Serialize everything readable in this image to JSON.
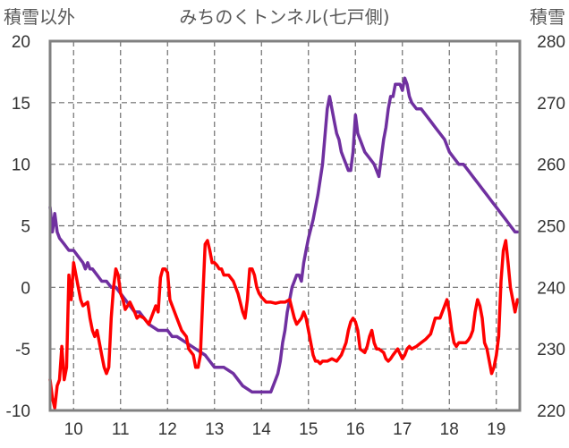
{
  "chart_data": {
    "type": "line",
    "title": "みちのくトンネル(七戸側)",
    "left_axis_label": "積雪以外",
    "right_axis_label": "積雪",
    "x_ticks": [
      "10",
      "11",
      "12",
      "13",
      "14",
      "15",
      "16",
      "17",
      "18",
      "19"
    ],
    "x_range": [
      9.5,
      19.5
    ],
    "left_ylim": [
      -10,
      20
    ],
    "left_ticks": [
      "20",
      "15",
      "10",
      "5",
      "0",
      "-5",
      "-10"
    ],
    "right_ylim": [
      220,
      280
    ],
    "right_ticks": [
      "280",
      "270",
      "260",
      "250",
      "240",
      "230",
      "220"
    ],
    "grid": true,
    "colors": {
      "red_series": "#ff0000",
      "purple_series": "#7030a0",
      "frame": "#808080",
      "grid": "#6e6e6e"
    },
    "series": [
      {
        "axis": "left",
        "color": "#ff0000",
        "x": [
          9.5,
          9.55,
          9.6,
          9.65,
          9.7,
          9.75,
          9.8,
          9.85,
          9.9,
          9.95,
          10.0,
          10.05,
          10.1,
          10.15,
          10.2,
          10.3,
          10.35,
          10.4,
          10.45,
          10.5,
          10.55,
          10.6,
          10.65,
          10.7,
          10.75,
          10.8,
          10.85,
          10.9,
          10.95,
          11.0,
          11.05,
          11.1,
          11.15,
          11.2,
          11.3,
          11.35,
          11.4,
          11.5,
          11.6,
          11.7,
          11.75,
          11.8,
          11.85,
          11.9,
          11.95,
          12.0,
          12.05,
          12.1,
          12.15,
          12.2,
          12.3,
          12.4,
          12.45,
          12.55,
          12.6,
          12.65,
          12.7,
          12.75,
          12.8,
          12.85,
          12.9,
          12.95,
          13.0,
          13.05,
          13.1,
          13.15,
          13.2,
          13.3,
          13.4,
          13.5,
          13.6,
          13.65,
          13.7,
          13.75,
          13.8,
          13.85,
          13.9,
          13.95,
          14.0,
          14.05,
          14.1,
          14.2,
          14.3,
          14.4,
          14.5,
          14.6,
          14.7,
          14.75,
          14.85,
          14.9,
          14.95,
          15.0,
          15.05,
          15.1,
          15.15,
          15.2,
          15.25,
          15.3,
          15.4,
          15.5,
          15.6,
          15.7,
          15.8,
          15.85,
          15.9,
          15.95,
          16.0,
          16.05,
          16.1,
          16.2,
          16.25,
          16.3,
          16.35,
          16.4,
          16.45,
          16.5,
          16.6,
          16.65,
          16.7,
          16.75,
          16.8,
          16.9,
          17.0,
          17.05,
          17.1,
          17.15,
          17.2,
          17.3,
          17.4,
          17.5,
          17.6,
          17.7,
          17.8,
          17.85,
          17.9,
          17.95,
          18.0,
          18.05,
          18.1,
          18.15,
          18.2,
          18.3,
          18.35,
          18.4,
          18.45,
          18.5,
          18.55,
          18.6,
          18.65,
          18.7,
          18.75,
          18.8,
          18.85,
          18.9,
          18.95,
          19.0,
          19.05,
          19.1,
          19.15,
          19.2,
          19.25,
          19.3,
          19.35,
          19.4,
          19.45
        ],
        "y": [
          -7.5,
          -9.0,
          -9.8,
          -8.0,
          -7.5,
          -4.8,
          -7.5,
          -6.5,
          1.0,
          -1.0,
          2.0,
          1.0,
          0.0,
          -1.0,
          -1.5,
          -1.2,
          -2.5,
          -3.5,
          -4.0,
          -3.5,
          -4.5,
          -5.5,
          -6.5,
          -7.0,
          -6.5,
          -2.5,
          0.0,
          1.5,
          1.0,
          -0.5,
          -1.0,
          -1.8,
          -1.5,
          -1.2,
          -2.0,
          -2.5,
          -2.3,
          -2.5,
          -3.0,
          -2.0,
          -1.5,
          -2.0,
          0.8,
          1.5,
          1.5,
          1.2,
          -1.0,
          -1.5,
          -2.0,
          -2.5,
          -3.5,
          -4.0,
          -5.0,
          -5.5,
          -6.5,
          -6.5,
          -5.5,
          -1.0,
          3.5,
          3.8,
          3.0,
          2.0,
          2.0,
          1.8,
          1.5,
          1.5,
          1.0,
          1.0,
          0.5,
          -0.5,
          -2.0,
          -2.5,
          -1.0,
          1.5,
          1.5,
          1.0,
          0.0,
          -0.5,
          -0.8,
          -1.0,
          -1.2,
          -1.2,
          -1.3,
          -1.2,
          -1.2,
          -1.0,
          -2.5,
          -3.0,
          -2.5,
          -2.0,
          -2.5,
          -3.5,
          -4.5,
          -5.5,
          -6.0,
          -6.0,
          -6.2,
          -6.0,
          -6.0,
          -5.8,
          -6.0,
          -5.5,
          -4.5,
          -3.5,
          -2.8,
          -2.5,
          -2.8,
          -3.5,
          -5.0,
          -5.3,
          -4.8,
          -4.0,
          -3.5,
          -4.5,
          -5.0,
          -5.0,
          -5.3,
          -5.8,
          -6.0,
          -5.8,
          -5.5,
          -5.0,
          -5.8,
          -5.5,
          -5.0,
          -4.8,
          -5.0,
          -4.8,
          -4.5,
          -4.2,
          -3.8,
          -2.5,
          -2.5,
          -2.0,
          -1.5,
          -1.0,
          -2.0,
          -3.5,
          -4.5,
          -4.8,
          -4.5,
          -4.5,
          -4.5,
          -4.3,
          -4.0,
          -3.5,
          -2.0,
          -1.0,
          -1.5,
          -2.5,
          -4.5,
          -5.0,
          -6.0,
          -7.0,
          -6.5,
          -5.5,
          -4.0,
          0.5,
          3.0,
          3.8,
          2.0,
          0.0,
          -1.0,
          -2.0,
          -1.0
        ],
        "coverage": [
          9.5,
          19.5
        ]
      },
      {
        "axis": "right",
        "color": "#7030a0",
        "x": [
          9.5,
          9.55,
          9.6,
          9.65,
          9.7,
          9.8,
          9.9,
          10.0,
          10.1,
          10.2,
          10.25,
          10.3,
          10.35,
          10.4,
          10.5,
          10.6,
          10.7,
          10.8,
          10.9,
          11.0,
          11.1,
          11.2,
          11.3,
          11.4,
          11.5,
          11.6,
          11.8,
          12.0,
          12.1,
          12.2,
          12.4,
          12.6,
          12.8,
          12.9,
          13.0,
          13.2,
          13.4,
          13.5,
          13.6,
          13.8,
          14.0,
          14.1,
          14.2,
          14.3,
          14.35,
          14.4,
          14.45,
          14.5,
          14.55,
          14.6,
          14.65,
          14.7,
          14.75,
          14.8,
          14.85,
          14.9,
          14.95,
          15.0,
          15.1,
          15.2,
          15.3,
          15.4,
          15.45,
          15.5,
          15.55,
          15.6,
          15.65,
          15.7,
          15.75,
          15.8,
          15.85,
          15.9,
          15.95,
          16.0,
          16.05,
          16.1,
          16.15,
          16.2,
          16.3,
          16.4,
          16.45,
          16.5,
          16.55,
          16.6,
          16.65,
          16.7,
          16.75,
          16.8,
          16.85,
          16.9,
          16.95,
          17.0,
          17.05,
          17.1,
          17.15,
          17.2,
          17.3,
          17.4,
          17.5,
          17.6,
          17.7,
          17.8,
          17.9,
          18.0,
          18.1,
          18.2,
          18.3,
          18.4,
          18.5,
          18.6,
          18.7,
          18.8,
          18.9,
          19.0,
          19.1,
          19.2,
          19.3,
          19.4,
          19.45
        ],
        "y": [
          253,
          249,
          252,
          249,
          248,
          247,
          246,
          246,
          245,
          244,
          243,
          244,
          243,
          243,
          242,
          241,
          241,
          240,
          240,
          239,
          238,
          237,
          236,
          236,
          235,
          234,
          233,
          233,
          232,
          232,
          231,
          230,
          229,
          228,
          227,
          227,
          226,
          225,
          224,
          223,
          223,
          223,
          223,
          225,
          226,
          228,
          231,
          233,
          236,
          238,
          240,
          241,
          242,
          242,
          241,
          244,
          246,
          248,
          251,
          255,
          260,
          269,
          271,
          269,
          267,
          265,
          264,
          262,
          261,
          260,
          259,
          259,
          262,
          268,
          265,
          264,
          263,
          262,
          261,
          260,
          259,
          258,
          261,
          264,
          266,
          269,
          271,
          271,
          273,
          273,
          273,
          272,
          274,
          273,
          271,
          270,
          269,
          269,
          268,
          267,
          266,
          265,
          264,
          262,
          261,
          260,
          260,
          259,
          258,
          257,
          256,
          255,
          254,
          253,
          252,
          251,
          250,
          249,
          249
        ],
        "coverage": [
          9.5,
          19.5
        ]
      }
    ]
  }
}
